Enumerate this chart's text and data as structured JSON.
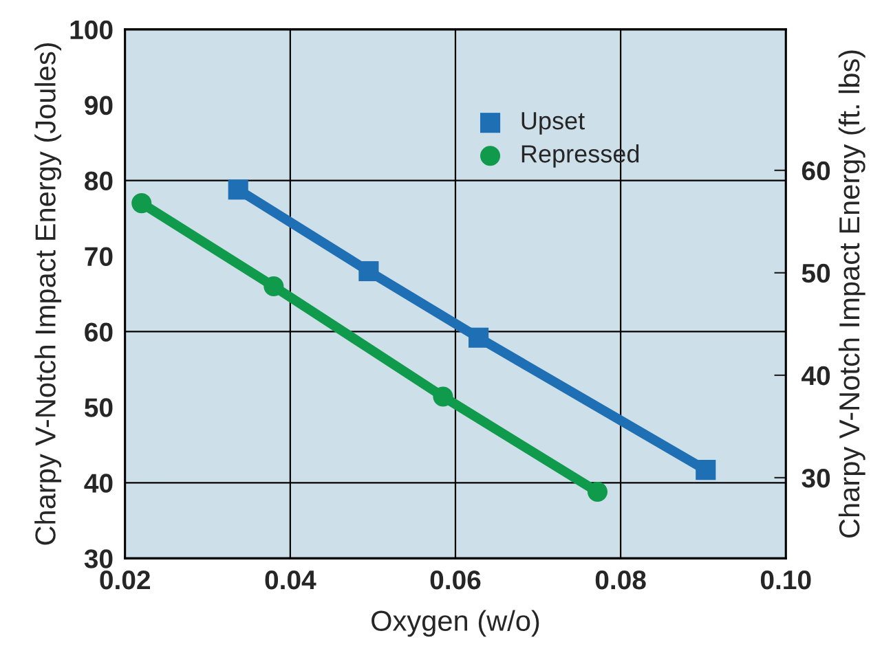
{
  "chart_data": {
    "type": "line",
    "xlabel": "Oxygen (w/o)",
    "ylabel": "Charpy V-Notch Impact Energy (Joules)",
    "y2label": "Charpy V-Notch Impact Energy (ft. lbs)",
    "xlim": [
      0.02,
      0.1
    ],
    "xticks": [
      {
        "value": 0.02,
        "label": "0.02"
      },
      {
        "value": 0.04,
        "label": "0.04"
      },
      {
        "value": 0.06,
        "label": "0.06"
      },
      {
        "value": 0.08,
        "label": "0.08"
      },
      {
        "value": 0.1,
        "label": "0.10"
      }
    ],
    "ylim": [
      30,
      100
    ],
    "yticks": [
      30,
      40,
      50,
      60,
      70,
      80,
      90,
      100
    ],
    "y2lim": [
      22.13,
      73.76
    ],
    "y2ticks": [
      30,
      40,
      50,
      60
    ],
    "series": [
      {
        "name": "Upset",
        "color": "#1f6fb5",
        "marker": "square",
        "x": [
          0.0337,
          0.0495,
          0.0628,
          0.0903
        ],
        "values": [
          78.8,
          68.0,
          59.2,
          41.7
        ]
      },
      {
        "name": "Repressed",
        "color": "#109a4c",
        "marker": "circle",
        "x": [
          0.022,
          0.038,
          0.0585,
          0.0772
        ],
        "values": [
          77.0,
          66.0,
          51.4,
          38.8
        ]
      }
    ],
    "ref_lines": [
      {
        "axis": "x",
        "value": 0.04,
        "color": "#000000"
      },
      {
        "axis": "x",
        "value": 0.06,
        "color": "#000000"
      },
      {
        "axis": "x",
        "value": 0.08,
        "color": "#000000"
      },
      {
        "axis": "y",
        "value": 40,
        "color": "#000000"
      },
      {
        "axis": "y",
        "value": 60,
        "color": "#000000"
      },
      {
        "axis": "y",
        "value": 80,
        "color": "#000000"
      }
    ],
    "legend": "top right"
  }
}
